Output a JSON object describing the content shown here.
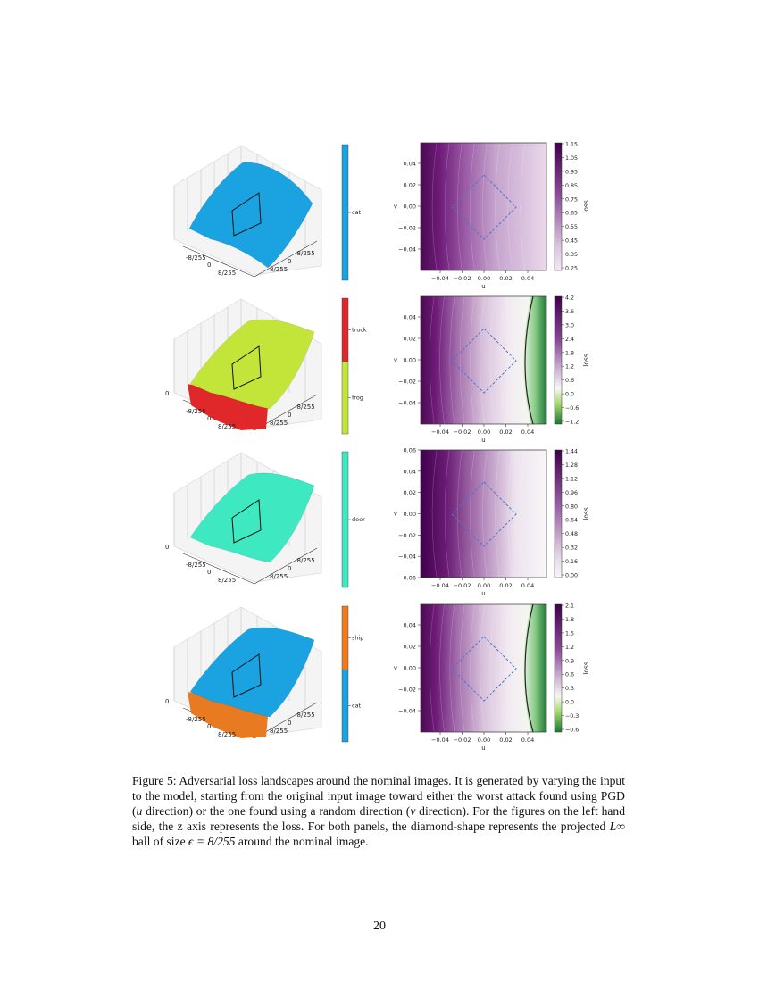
{
  "figure": {
    "rows": [
      {
        "surface": {
          "top_color": "#1aa3e0",
          "bottom_color": null,
          "zlabel": "",
          "u_ticks": [
            "-8/255",
            "0",
            "8/255"
          ],
          "v_ticks": [
            "-8/255",
            "0",
            "8/255"
          ]
        },
        "class_bar": {
          "segments": [
            {
              "label": "cat",
              "color": "#1aa3e0",
              "fraction": 1.0
            }
          ]
        },
        "contour": {
          "type": "heatmap",
          "xlabel": "u",
          "ylabel": "v",
          "colorbar_label": "loss",
          "xticks": [
            "−0.04",
            "−0.02",
            "0.00",
            "0.02",
            "0.04"
          ],
          "yticks": [
            "0.04",
            "0.02",
            "0.00",
            "−0.02",
            "−0.04"
          ],
          "colorbar_ticks": [
            "1.15",
            "1.05",
            "0.95",
            "0.85",
            "0.75",
            "0.65",
            "0.55",
            "0.45",
            "0.35",
            "0.25"
          ],
          "green_region": false,
          "boundary": false
        }
      },
      {
        "surface": {
          "top_color": "#c3e53a",
          "bottom_color": "#e0272a",
          "zlabel": "0",
          "u_ticks": [
            "-8/255",
            "0",
            "8/255"
          ],
          "v_ticks": [
            "-8/255",
            "0",
            "8/255"
          ]
        },
        "class_bar": {
          "segments": [
            {
              "label": "truck",
              "color": "#e0272a",
              "fraction": 0.47
            },
            {
              "label": "frog",
              "color": "#c3e53a",
              "fraction": 0.53
            }
          ]
        },
        "contour": {
          "type": "heatmap",
          "xlabel": "u",
          "ylabel": "v",
          "colorbar_label": "loss",
          "xticks": [
            "−0.04",
            "−0.02",
            "0.00",
            "0.02",
            "0.04"
          ],
          "yticks": [
            "0.04",
            "0.02",
            "0.00",
            "−0.02",
            "−0.04"
          ],
          "colorbar_ticks": [
            "4.2",
            "3.6",
            "3.0",
            "2.4",
            "1.8",
            "1.2",
            "0.6",
            "0.0",
            "−0.6",
            "−1.2"
          ],
          "green_region": true,
          "boundary": true
        }
      },
      {
        "surface": {
          "top_color": "#3ee8c0",
          "bottom_color": null,
          "zlabel": "0",
          "u_ticks": [
            "-8/255",
            "0",
            "8/255"
          ],
          "v_ticks": [
            "-8/255",
            "0",
            "8/255"
          ]
        },
        "class_bar": {
          "segments": [
            {
              "label": "deer",
              "color": "#3ee8c0",
              "fraction": 1.0
            }
          ]
        },
        "contour": {
          "type": "heatmap",
          "xlabel": "u",
          "ylabel": "v",
          "colorbar_label": "loss",
          "xticks": [
            "−0.04",
            "−0.02",
            "0.00",
            "0.02",
            "0.04"
          ],
          "yticks": [
            "0.06",
            "0.04",
            "0.02",
            "0.00",
            "−0.02",
            "−0.04",
            "−0.06"
          ],
          "colorbar_ticks": [
            "1.44",
            "1.28",
            "1.12",
            "0.96",
            "0.80",
            "0.64",
            "0.48",
            "0.32",
            "0.16",
            "0.00"
          ],
          "green_region": false,
          "boundary": false
        }
      },
      {
        "surface": {
          "top_color": "#1aa3e0",
          "bottom_color": "#e87a22",
          "zlabel": "0",
          "u_ticks": [
            "-8/255",
            "0",
            "8/255"
          ],
          "v_ticks": [
            "-8/255",
            "0",
            "8/255"
          ]
        },
        "class_bar": {
          "segments": [
            {
              "label": "ship",
              "color": "#f07a1f",
              "fraction": 0.47
            },
            {
              "label": "cat",
              "color": "#1aa3e0",
              "fraction": 0.53
            }
          ]
        },
        "contour": {
          "type": "heatmap",
          "xlabel": "u",
          "ylabel": "v",
          "colorbar_label": "loss",
          "xticks": [
            "−0.04",
            "−0.02",
            "0.00",
            "0.02",
            "0.04"
          ],
          "yticks": [
            "0.04",
            "0.02",
            "0.00",
            "−0.02",
            "−0.04"
          ],
          "colorbar_ticks": [
            "2.1",
            "1.8",
            "1.5",
            "1.2",
            "0.9",
            "0.6",
            "0.3",
            "0.0",
            "−0.3",
            "−0.6"
          ],
          "green_region": true,
          "boundary": true
        }
      }
    ]
  },
  "caption": {
    "lead": "Figure 5: Adversarial loss landscapes around the nominal images. It is generated by varying the input to the model, starting from the original input image toward either the worst attack found using PGD (",
    "u_var": "u",
    "mid1": " direction) or the one found using a random direction (",
    "v_var": "v",
    "mid2": " direction). For the figures on the left hand side, the z axis represents the loss. For both panels, the diamond-shape represents the projected ",
    "linf": "L∞",
    "mid3": " ball of size ",
    "eps": "ϵ = 8/255",
    "tail": " around the nominal image."
  },
  "page_number": "20"
}
